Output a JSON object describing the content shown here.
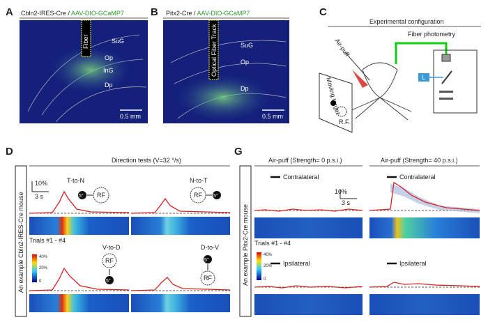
{
  "A": {
    "label": "A",
    "title_cre": "Cbln2-IRES-Cre /",
    "title_virus": "AAV-DIO-GCaMP7",
    "fiber": "Fiber",
    "regions": [
      "SuG",
      "Op",
      "InG",
      "Dp"
    ],
    "scale": "0.5 mm"
  },
  "B": {
    "label": "B",
    "title_cre": "Pitx2-Cre /",
    "title_virus": "AAV-DIO-GCaMP7",
    "fiber": "Optical Fiber Track",
    "regions": [
      "SuG",
      "Op",
      "Dp"
    ],
    "scale": "0.5 mm"
  },
  "C": {
    "label": "C",
    "title": "Experimental configuration",
    "photometry": "Fiber photometry",
    "airpuff": "Air-puff",
    "target": "Moving target",
    "rf": "R.F.",
    "light": "L"
  },
  "D": {
    "label": "D",
    "title": "Direction tests (V=32 °/s)",
    "side": "An example Cbln2-IRES-Cre mouse",
    "scale_y": "10%",
    "scale_x": "3 s",
    "trials": "Trials  #1 - #4",
    "colorbar": [
      "40%",
      "20%",
      "0"
    ],
    "tests": [
      {
        "name": "T-to-N",
        "stim": "5°",
        "rf": "RF"
      },
      {
        "name": "N-to-T",
        "stim": "5°",
        "rf": "RF"
      },
      {
        "name": "V-to-D",
        "stim": "5°",
        "rf": "RF"
      },
      {
        "name": "D-to-V",
        "stim": "5°",
        "rf": "RF"
      }
    ]
  },
  "G": {
    "label": "G",
    "title_left": "Air-puff (Strength= 0 p.s.i.)",
    "title_right": "Air-puff (Strength= 40 p.s.i.)",
    "side": "An example Pitx2-Cre mouse",
    "scale_y": "10%",
    "scale_x": "3 s",
    "trials": "Trials  #1 - #4",
    "colorbar": [
      "40%",
      "20%",
      "0"
    ],
    "conditions": [
      "Contralateral",
      "Contralateral",
      "Ipsilateral",
      "Ipsilateral"
    ]
  }
}
